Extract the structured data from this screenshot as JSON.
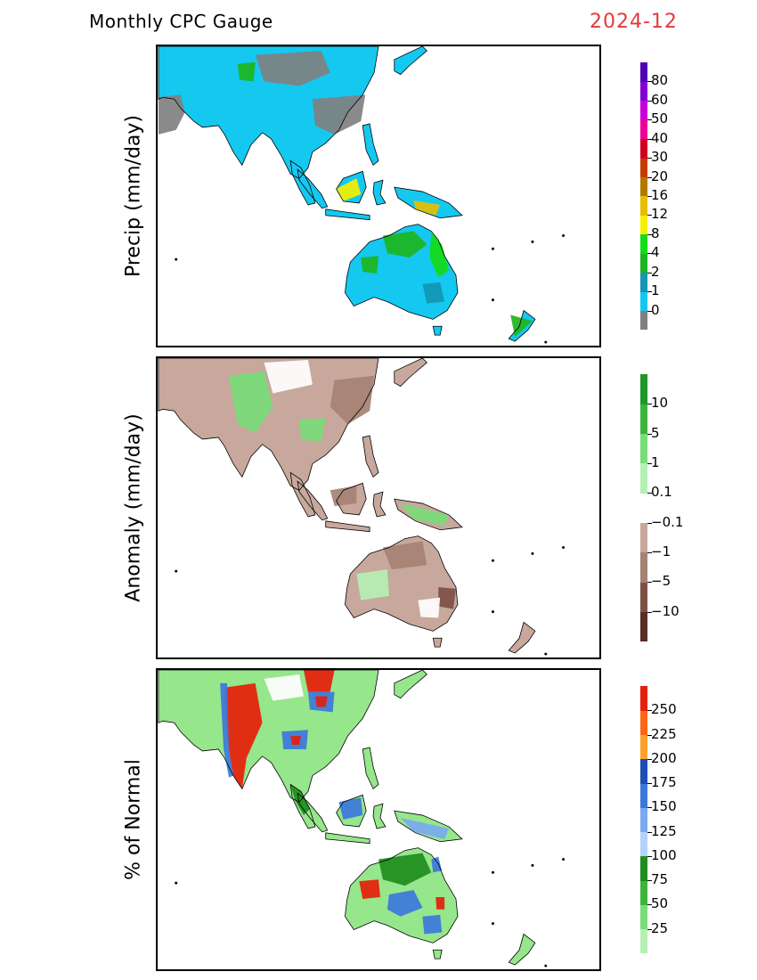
{
  "header": {
    "title": "Monthly CPC Gauge",
    "date": "2024-12",
    "date_color": "#e23a3a"
  },
  "panels": [
    {
      "id": "precip",
      "label": "Precip (mm/day)",
      "land_color": "#14c8f0",
      "colorbar": {
        "colors": [
          "#808080",
          "#14c8f0",
          "#1496b4",
          "#1eb41e",
          "#14dc14",
          "#f5f000",
          "#e6be00",
          "#b47800",
          "#c83c00",
          "#d2001e",
          "#f00096",
          "#c800dc",
          "#8200d2",
          "#5000b4"
        ],
        "labels": [
          "0",
          "1",
          "2",
          "4",
          "8",
          "12",
          "16",
          "20",
          "30",
          "40",
          "50",
          "60",
          "80"
        ]
      }
    },
    {
      "id": "anomaly",
      "label": "Anomaly (mm/day)",
      "land_color": "#c8a89c",
      "colorbar": {
        "colors": [
          "#5a2d23",
          "#7d5046",
          "#a58274",
          "#c8a89c",
          "#ffffff",
          "#b4f0b4",
          "#78dc78",
          "#3cb43c",
          "#1e9628"
        ],
        "labels": [
          "−10",
          "−5",
          "−1",
          "−0.1",
          "0.1",
          "1",
          "5",
          "10"
        ]
      }
    },
    {
      "id": "percent",
      "label": "% of Normal",
      "land_color": "#96e68c",
      "colorbar": {
        "colors": [
          "#b4f0b4",
          "#78dc78",
          "#3cb43c",
          "#1e8c1e",
          "#b4d2ff",
          "#78aaf0",
          "#3c78dc",
          "#1e50b4",
          "#ffa028",
          "#ff6414",
          "#e61e0a"
        ],
        "labels": [
          "25",
          "50",
          "75",
          "100",
          "125",
          "150",
          "175",
          "200",
          "225",
          "250"
        ]
      }
    }
  ]
}
